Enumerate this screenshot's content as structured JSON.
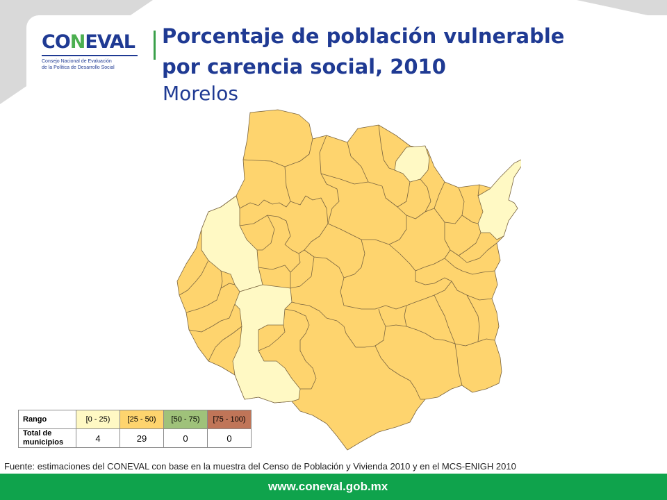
{
  "logo": {
    "word_pre": "CO",
    "word_l": "N",
    "word_post": "EVAL",
    "line1": "Consejo Nacional de Evaluación",
    "line2": "de la Política de Desarrollo Social"
  },
  "title_line1": "Porcentaje de población vulnerable",
  "title_line2": "por carencia social, 2010",
  "subtitle": "Morelos",
  "colors": {
    "range1": "#fff9c4",
    "range2": "#fed46e",
    "range3": "#9fc27a",
    "range4": "#c07558",
    "brand": "#1f3a93",
    "footer": "#0fa34c"
  },
  "legend": {
    "rango_label": "Rango",
    "total_label_1": "Total de",
    "total_label_2": "municipios",
    "ranges": [
      "[0 - 25)",
      "[25 - 50)",
      "[50 - 75)",
      "[75 - 100)"
    ],
    "counts": [
      "4",
      "29",
      "0",
      "0"
    ]
  },
  "source": "Fuente: estimaciones del CONEVAL con base en la muestra del Censo de Población y Vivienda 2010 y en el MCS-ENIGH 2010",
  "footer_url": "www.coneval.gob.mx"
}
